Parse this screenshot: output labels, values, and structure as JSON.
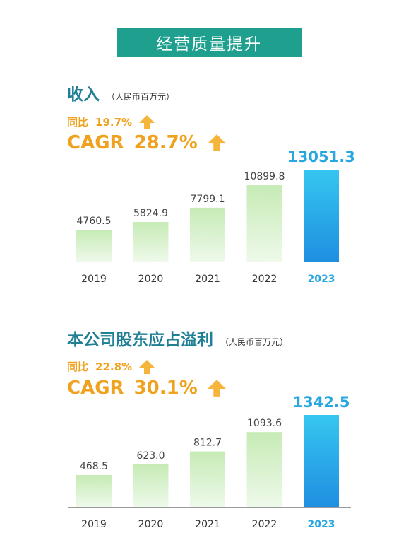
{
  "banner": "经营质量提升",
  "colors": {
    "banner": "#1f9f8e",
    "title": "#1f7f95",
    "accent_orange": "#f0a21e",
    "highlight_blue": "#29a7e1",
    "bar_green": "#cfeec0"
  },
  "icons": {
    "growth": "up-arrow-icon"
  },
  "revenue": {
    "title": "收入",
    "unit": "（人民币百万元）",
    "yoy_label": "同比",
    "yoy_value": "19.7%",
    "cagr_label": "CAGR",
    "cagr_value": "28.7%"
  },
  "profit": {
    "title": "本公司股东应占溢利",
    "unit": "（人民币百万元）",
    "yoy_label": "同比",
    "yoy_value": "22.8%",
    "cagr_label": "CAGR",
    "cagr_value": "30.1%"
  },
  "chart_data": [
    {
      "type": "bar",
      "title": "收入",
      "categories": [
        "2019",
        "2020",
        "2021",
        "2022",
        "2023"
      ],
      "values": [
        4760.5,
        5824.9,
        7799.1,
        10899.8,
        13051.3
      ],
      "value_labels": [
        "4760.5",
        "5824.9",
        "7799.1",
        "10899.8",
        "13051.3"
      ],
      "highlight_index": 4,
      "grid": false
    },
    {
      "type": "bar",
      "title": "本公司股东应占溢利",
      "categories": [
        "2019",
        "2020",
        "2021",
        "2022",
        "2023"
      ],
      "values": [
        468.5,
        623.0,
        812.7,
        1093.6,
        1342.5
      ],
      "value_labels": [
        "468.5",
        "623.0",
        "812.7",
        "1093.6",
        "1342.5"
      ],
      "highlight_index": 4,
      "grid": false
    }
  ]
}
